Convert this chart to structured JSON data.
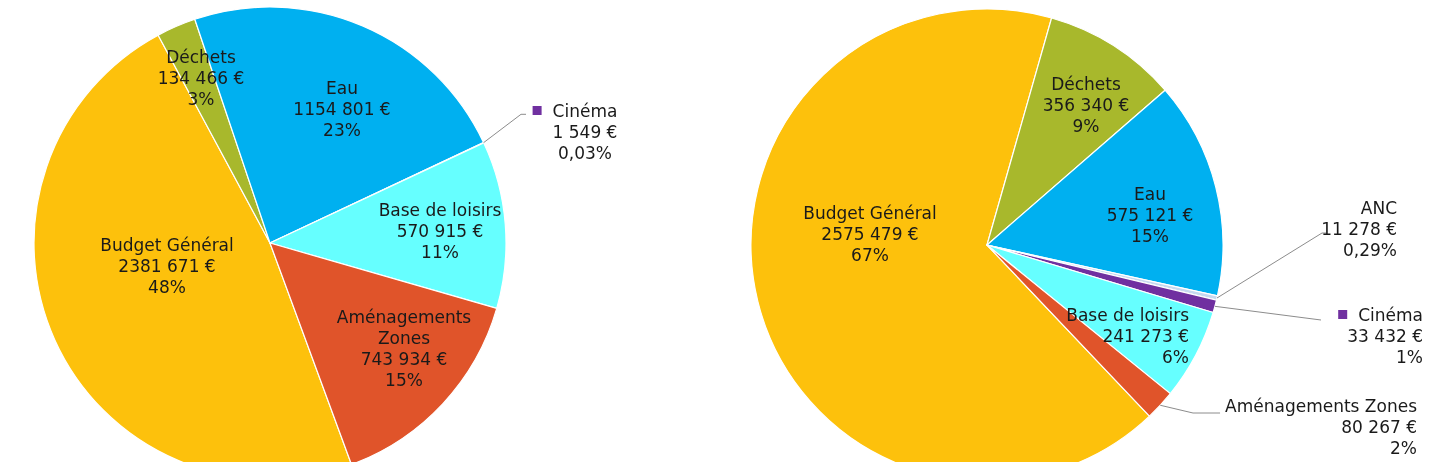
{
  "chart_data": [
    {
      "type": "pie",
      "categories": [
        "Budget Général",
        "Déchets",
        "Eau",
        "Cinéma",
        "Base de loisirs",
        "Aménagements Zones"
      ],
      "values": [
        2381671,
        134466,
        1154801,
        1549,
        570915,
        743934
      ],
      "colors": [
        "#fdc10c",
        "#a8b82c",
        "#00b0f0",
        "#7030a0",
        "#66ffff",
        "#e0542a"
      ],
      "value_labels": [
        "2381 671 €\n48%",
        "134 466 €\n3%",
        "1154 801 €\n23%",
        "1 549 €\n0,03%",
        "570 915 €\n11%",
        "743 934 €\n15%"
      ]
    },
    {
      "type": "pie",
      "categories": [
        "Budget Général",
        "Déchets",
        "Eau",
        "ANC",
        "Cinéma",
        "Base de loisirs",
        "Aménagements Zones"
      ],
      "values": [
        2575479,
        356340,
        575121,
        11278,
        33432,
        241273,
        80267
      ],
      "colors": [
        "#fdc10c",
        "#a8b82c",
        "#00b0f0",
        "#c6d9f0",
        "#7030a0",
        "#66ffff",
        "#e0542a"
      ],
      "value_labels": [
        "2575 479 €\n67%",
        "356 340 €\n9%",
        "575 121 €\n15%",
        "11 278 €\n0,29%",
        "33 432 €\n1%",
        "241 273 €\n6%",
        "80 267 €\n2%"
      ]
    }
  ]
}
